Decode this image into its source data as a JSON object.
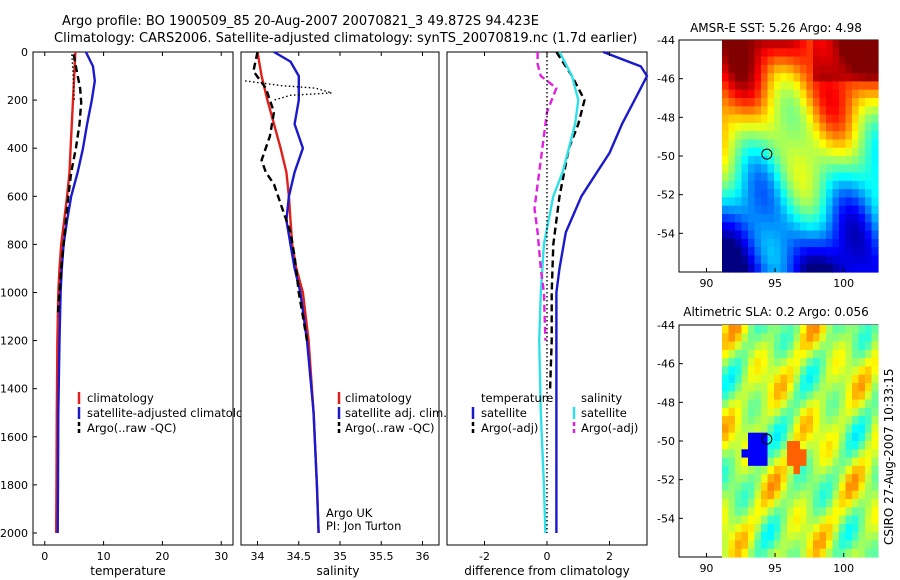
{
  "header": {
    "line1": "Argo profile: BO 1900509_85 20-Aug-2007 20070821_3 49.872S 94.423E",
    "line2": "Climatology: CARS2006. Satellite-adjusted climatology: synTS_20070819.nc (1.7d earlier)"
  },
  "side_label": "CSIRO 27-Aug-2007 10:33:15",
  "colors": {
    "climatology": "#e0201b",
    "satellite": "#1a1acc",
    "argo": "#000000",
    "satellite_diff": "#30e0e8",
    "argo_diff": "#e020e0"
  },
  "chart_data": [
    {
      "type": "line",
      "xlabel": "temperature",
      "x_ticks": [
        "0",
        "10",
        "20",
        "30"
      ],
      "y_ticks": [
        "0",
        "200",
        "400",
        "600",
        "800",
        "1000",
        "1200",
        "1400",
        "1600",
        "1800",
        "2000"
      ],
      "xlim": [
        -2,
        32
      ],
      "ylim": [
        0,
        2050
      ],
      "y_reversed": true,
      "legend": {
        "position": "lower-right",
        "entries": [
          "climatology",
          "satellite-adjusted climatology",
          "Argo(..raw -QC)"
        ]
      },
      "series": [
        {
          "name": "climatology",
          "color": "#e0201b",
          "style": "solid",
          "x": [
            5.2,
            5.0,
            4.8,
            4.6,
            4.4,
            4.2,
            3.8,
            3.3,
            2.8,
            2.5,
            2.3,
            2.15,
            2.05,
            2.0,
            1.95
          ],
          "y": [
            0,
            100,
            200,
            300,
            400,
            500,
            600,
            700,
            800,
            900,
            1000,
            1200,
            1500,
            1800,
            2000
          ]
        },
        {
          "name": "satellite-adjusted climatology",
          "color": "#1a1acc",
          "style": "solid",
          "x": [
            7.0,
            8.2,
            8.5,
            8.0,
            7.2,
            6.5,
            5.6,
            4.5,
            3.8,
            3.2,
            2.9,
            2.7,
            2.5,
            2.3,
            2.25,
            2.2
          ],
          "y": [
            0,
            60,
            120,
            200,
            300,
            400,
            500,
            600,
            700,
            800,
            900,
            1000,
            1200,
            1500,
            1800,
            2000
          ]
        },
        {
          "name": "Argo(..raw -QC)",
          "color": "#000000",
          "style": "dash",
          "x": [
            4.9,
            5.3,
            5.6,
            6.0,
            6.2,
            5.9,
            5.3,
            4.5,
            4.0,
            3.6,
            3.2,
            2.8,
            2.5,
            2.2
          ],
          "y": [
            10,
            60,
            100,
            150,
            210,
            300,
            400,
            500,
            600,
            700,
            800,
            900,
            1000,
            1100
          ]
        },
        {
          "name": "Argo raw",
          "color": "#000000",
          "style": "dot",
          "x": [
            4.6,
            4.8,
            5.0
          ],
          "y": [
            10,
            80,
            200
          ]
        }
      ]
    },
    {
      "type": "line",
      "xlabel": "salinity",
      "x_ticks": [
        "34",
        "34.5",
        "35",
        "35.5",
        "36"
      ],
      "xlim": [
        33.8,
        36.2
      ],
      "ylim": [
        0,
        2050
      ],
      "y_reversed": true,
      "legend": {
        "position": "lower-right",
        "entries": [
          "climatology",
          "satellite adj. clim.",
          "Argo(..raw -QC)"
        ]
      },
      "annotation": [
        "Argo UK",
        "PI: Jon Turton"
      ],
      "series": [
        {
          "name": "climatology",
          "color": "#e0201b",
          "style": "solid",
          "x": [
            34.0,
            34.05,
            34.12,
            34.2,
            34.28,
            34.35,
            34.38,
            34.4,
            34.42,
            34.47,
            34.55,
            34.62,
            34.68,
            34.72,
            34.74
          ],
          "y": [
            0,
            100,
            200,
            300,
            400,
            500,
            600,
            700,
            800,
            900,
            1000,
            1200,
            1500,
            1800,
            2000
          ]
        },
        {
          "name": "satellite adj. clim.",
          "color": "#1a1acc",
          "style": "solid",
          "x": [
            34.2,
            34.4,
            34.5,
            34.5,
            34.45,
            34.55,
            34.45,
            34.38,
            34.35,
            34.4,
            34.45,
            34.52,
            34.6,
            34.68,
            34.72,
            34.74
          ],
          "y": [
            0,
            40,
            100,
            200,
            300,
            400,
            500,
            600,
            700,
            800,
            900,
            1000,
            1200,
            1500,
            1800,
            2000
          ]
        },
        {
          "name": "Argo(..raw -QC)",
          "color": "#000000",
          "style": "dash",
          "x": [
            34.0,
            33.95,
            34.1,
            34.2,
            34.15,
            34.05,
            34.1,
            34.2,
            34.25,
            34.3,
            34.35,
            34.4,
            34.45,
            34.5,
            34.6
          ],
          "y": [
            0,
            80,
            150,
            250,
            350,
            450,
            500,
            550,
            600,
            650,
            700,
            750,
            850,
            1000,
            1200
          ]
        },
        {
          "name": "Argo raw",
          "color": "#000000",
          "style": "dot",
          "x": [
            33.85,
            34.3,
            34.7,
            34.9,
            34.4,
            34.2
          ],
          "y": [
            120,
            140,
            150,
            170,
            180,
            200
          ]
        }
      ]
    },
    {
      "type": "line",
      "xlabel": "difference from climatology",
      "x_ticks": [
        "-2",
        "0",
        "2"
      ],
      "xlim": [
        -3.2,
        3.2
      ],
      "ylim": [
        0,
        2050
      ],
      "y_reversed": true,
      "legend": {
        "position": "lower-center",
        "temperature_title": "temperature",
        "salinity_title": "salinity",
        "temperature_entries": [
          "satellite",
          "Argo(-adj)"
        ],
        "salinity_entries": [
          "satellite",
          "Argo(-adj)"
        ]
      },
      "series": [
        {
          "name": "temperature satellite",
          "color": "#1a1acc",
          "style": "solid",
          "x": [
            1.8,
            3.0,
            3.2,
            3.0,
            2.4,
            2.0,
            1.6,
            1.1,
            0.6,
            0.4,
            0.3,
            0.3,
            0.3,
            0.3
          ],
          "y": [
            0,
            60,
            100,
            150,
            300,
            420,
            500,
            600,
            750,
            900,
            1000,
            1200,
            1600,
            2000
          ]
        },
        {
          "name": "temperature Argo(-adj)",
          "color": "#000000",
          "style": "dash",
          "x": [
            0.3,
            0.8,
            1.2,
            1.0,
            0.7,
            0.4,
            0.2,
            0.15,
            0.15,
            0.1
          ],
          "y": [
            0,
            100,
            200,
            300,
            400,
            600,
            800,
            1000,
            1200,
            1400
          ]
        },
        {
          "name": "salinity satellite",
          "color": "#30e0e8",
          "style": "solid",
          "x": [
            0.4,
            0.8,
            1.0,
            0.9,
            0.7,
            0.5,
            0.2,
            -0.1,
            -0.2,
            -0.25,
            -0.2,
            -0.1,
            -0.05
          ],
          "y": [
            0,
            100,
            200,
            300,
            400,
            500,
            600,
            800,
            1000,
            1200,
            1500,
            1800,
            2000
          ]
        },
        {
          "name": "salinity Argo(-adj)",
          "color": "#e020e0",
          "style": "dash",
          "x": [
            -0.3,
            -0.3,
            -0.2,
            0.3,
            0.0,
            -0.1,
            -0.2,
            -0.3,
            -0.4,
            -0.3,
            -0.2,
            -0.1,
            -0.05
          ],
          "y": [
            0,
            50,
            100,
            150,
            250,
            350,
            450,
            550,
            650,
            750,
            900,
            1000,
            1200
          ]
        },
        {
          "name": "zero line",
          "color": "#000000",
          "style": "dot",
          "x": [
            0,
            0
          ],
          "y": [
            0,
            2000
          ]
        }
      ]
    },
    {
      "type": "heatmap",
      "title": "AMSR-E SST: 5.26 Argo: 4.98",
      "x_ticks": [
        "90",
        "95",
        "100"
      ],
      "y_ticks": [
        "-44",
        "-46",
        "-48",
        "-50",
        "-52",
        "-54"
      ],
      "xlim": [
        88,
        102.5
      ],
      "ylim": [
        -56,
        -44
      ],
      "marker": {
        "lon": 94.4,
        "lat": -49.9
      }
    },
    {
      "type": "heatmap",
      "title": "Altimetric SLA: 0.2 Argo: 0.056",
      "x_ticks": [
        "90",
        "95",
        "100"
      ],
      "y_ticks": [
        "-44",
        "-46",
        "-48",
        "-50",
        "-52",
        "-54"
      ],
      "xlim": [
        88,
        102.5
      ],
      "ylim": [
        -56,
        -44
      ],
      "marker": {
        "lon": 94.4,
        "lat": -49.9
      }
    }
  ]
}
